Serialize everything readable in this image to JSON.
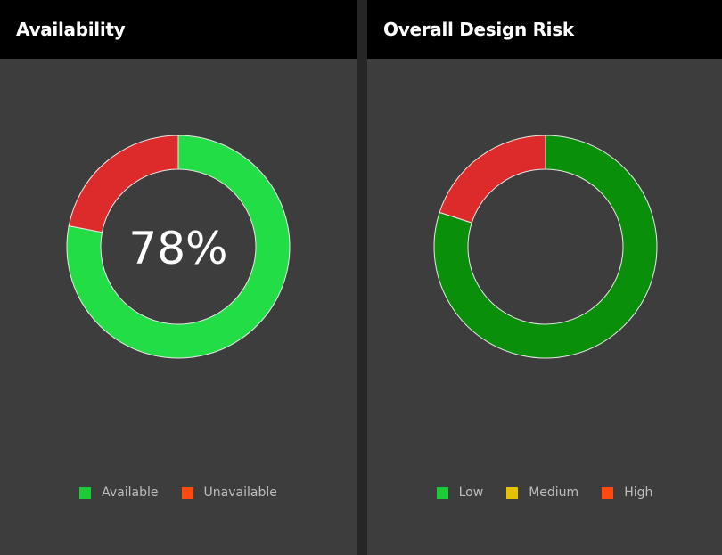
{
  "panels": [
    {
      "title": "Availability"
    },
    {
      "title": "Overall Design Risk"
    }
  ],
  "chart_data": [
    {
      "type": "pie",
      "style": "donut",
      "title": "Availability",
      "center_label": "78%",
      "categories": [
        "Available",
        "Unavailable"
      ],
      "values": [
        78,
        22
      ],
      "slice_colors": [
        "#22dd45",
        "#dd2b2b"
      ],
      "legend": [
        {
          "label": "Available",
          "color": "#1ccc36"
        },
        {
          "label": "Unavailable",
          "color": "#ff4a0f"
        }
      ],
      "legend_position": "bottom"
    },
    {
      "type": "pie",
      "style": "donut",
      "title": "Overall Design Risk",
      "categories": [
        "Low",
        "Medium",
        "High"
      ],
      "values": [
        80,
        0,
        20
      ],
      "slice_colors": [
        "#0a8f0a",
        "#e6c300",
        "#dd2b2b"
      ],
      "legend": [
        {
          "label": "Low",
          "color": "#1ccc36"
        },
        {
          "label": "Medium",
          "color": "#e6c300"
        },
        {
          "label": "High",
          "color": "#ff4a0f"
        }
      ],
      "legend_position": "bottom"
    }
  ]
}
